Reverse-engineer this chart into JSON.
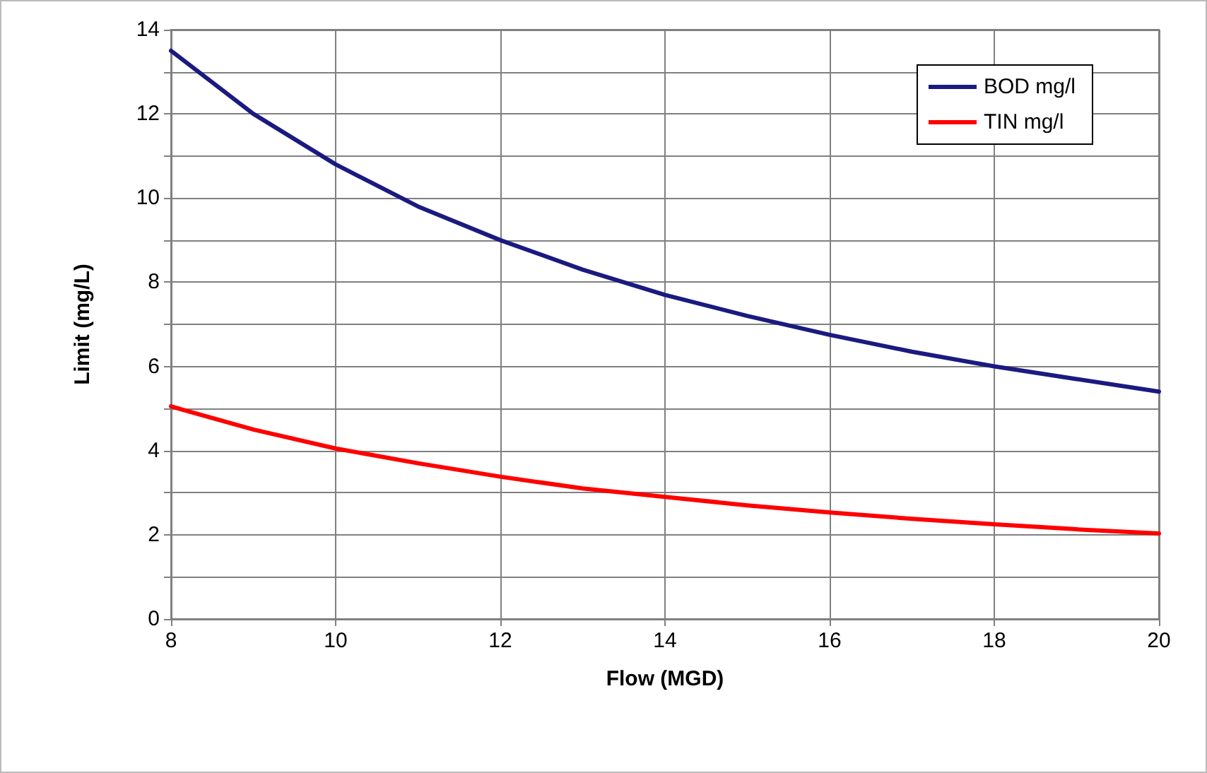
{
  "chart_data": {
    "type": "line",
    "xlabel": "Flow (MGD)",
    "ylabel": "Limit (mg/L)",
    "x": [
      8,
      9,
      10,
      11,
      12,
      13,
      14,
      15,
      16,
      17,
      18,
      19,
      20
    ],
    "series": [
      {
        "name": "BOD mg/l",
        "color": "#1a1a80",
        "values": [
          13.5,
          12.0,
          10.8,
          9.8,
          9.0,
          8.3,
          7.7,
          7.2,
          6.75,
          6.35,
          6.0,
          5.7,
          5.4
        ]
      },
      {
        "name": "TIN mg/l",
        "color": "#ff0000",
        "values": [
          5.05,
          4.5,
          4.05,
          3.7,
          3.38,
          3.1,
          2.9,
          2.7,
          2.53,
          2.38,
          2.25,
          2.13,
          2.03
        ]
      }
    ],
    "xlim": [
      8,
      20
    ],
    "xticks": [
      8,
      10,
      12,
      14,
      16,
      18,
      20
    ],
    "ylim": [
      0,
      14
    ],
    "yticks": [
      0,
      {
        "value": 1,
        "label": null
      },
      2,
      {
        "value": 3,
        "label": null
      },
      4,
      {
        "value": 5,
        "label": null
      },
      6,
      {
        "value": 7,
        "label": null
      },
      8,
      {
        "value": 9,
        "label": null
      },
      10,
      {
        "value": 11,
        "label": null
      },
      12,
      {
        "value": 13,
        "label": null
      },
      14
    ],
    "grid": true,
    "legend": "top right",
    "marker": "none",
    "line_style": "solid"
  }
}
